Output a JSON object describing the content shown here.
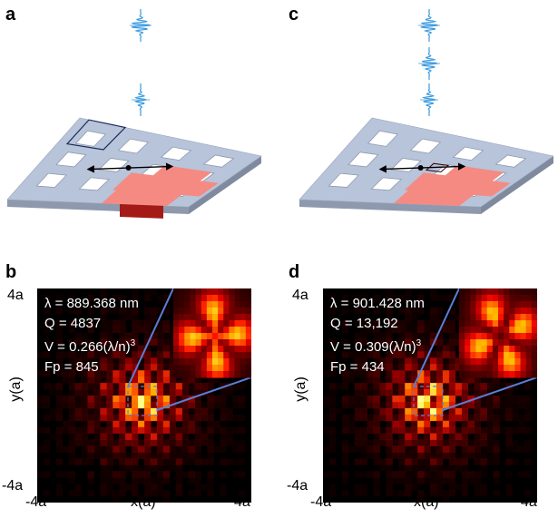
{
  "panels": {
    "a": {
      "letter": "a"
    },
    "b": {
      "letter": "b",
      "lambda": "λ = 889.368 nm",
      "q": "Q = 4837",
      "v": "V = 0.266(λ/n)",
      "v_exp": "3",
      "fp": "Fp = 845"
    },
    "c": {
      "letter": "c"
    },
    "d": {
      "letter": "d",
      "lambda": "λ = 901.428 nm",
      "q": "Q = 13,192",
      "v": "V = 0.309(λ/n)",
      "v_exp": "3",
      "fp": "Fp = 434"
    }
  },
  "axes": {
    "top": "4a",
    "bottom": "-4a",
    "left": "-4a",
    "right": "4a",
    "xlabel": "x(a)",
    "ylabel": "y(a)"
  },
  "colors": {
    "slab": "#b7c4da",
    "slab_edge": "#8e99ad",
    "cavity": "#f58a82",
    "cavity_dark": "#a31a17",
    "pulse": "#3b9ae0",
    "inset_line": "#5a7fd6"
  }
}
